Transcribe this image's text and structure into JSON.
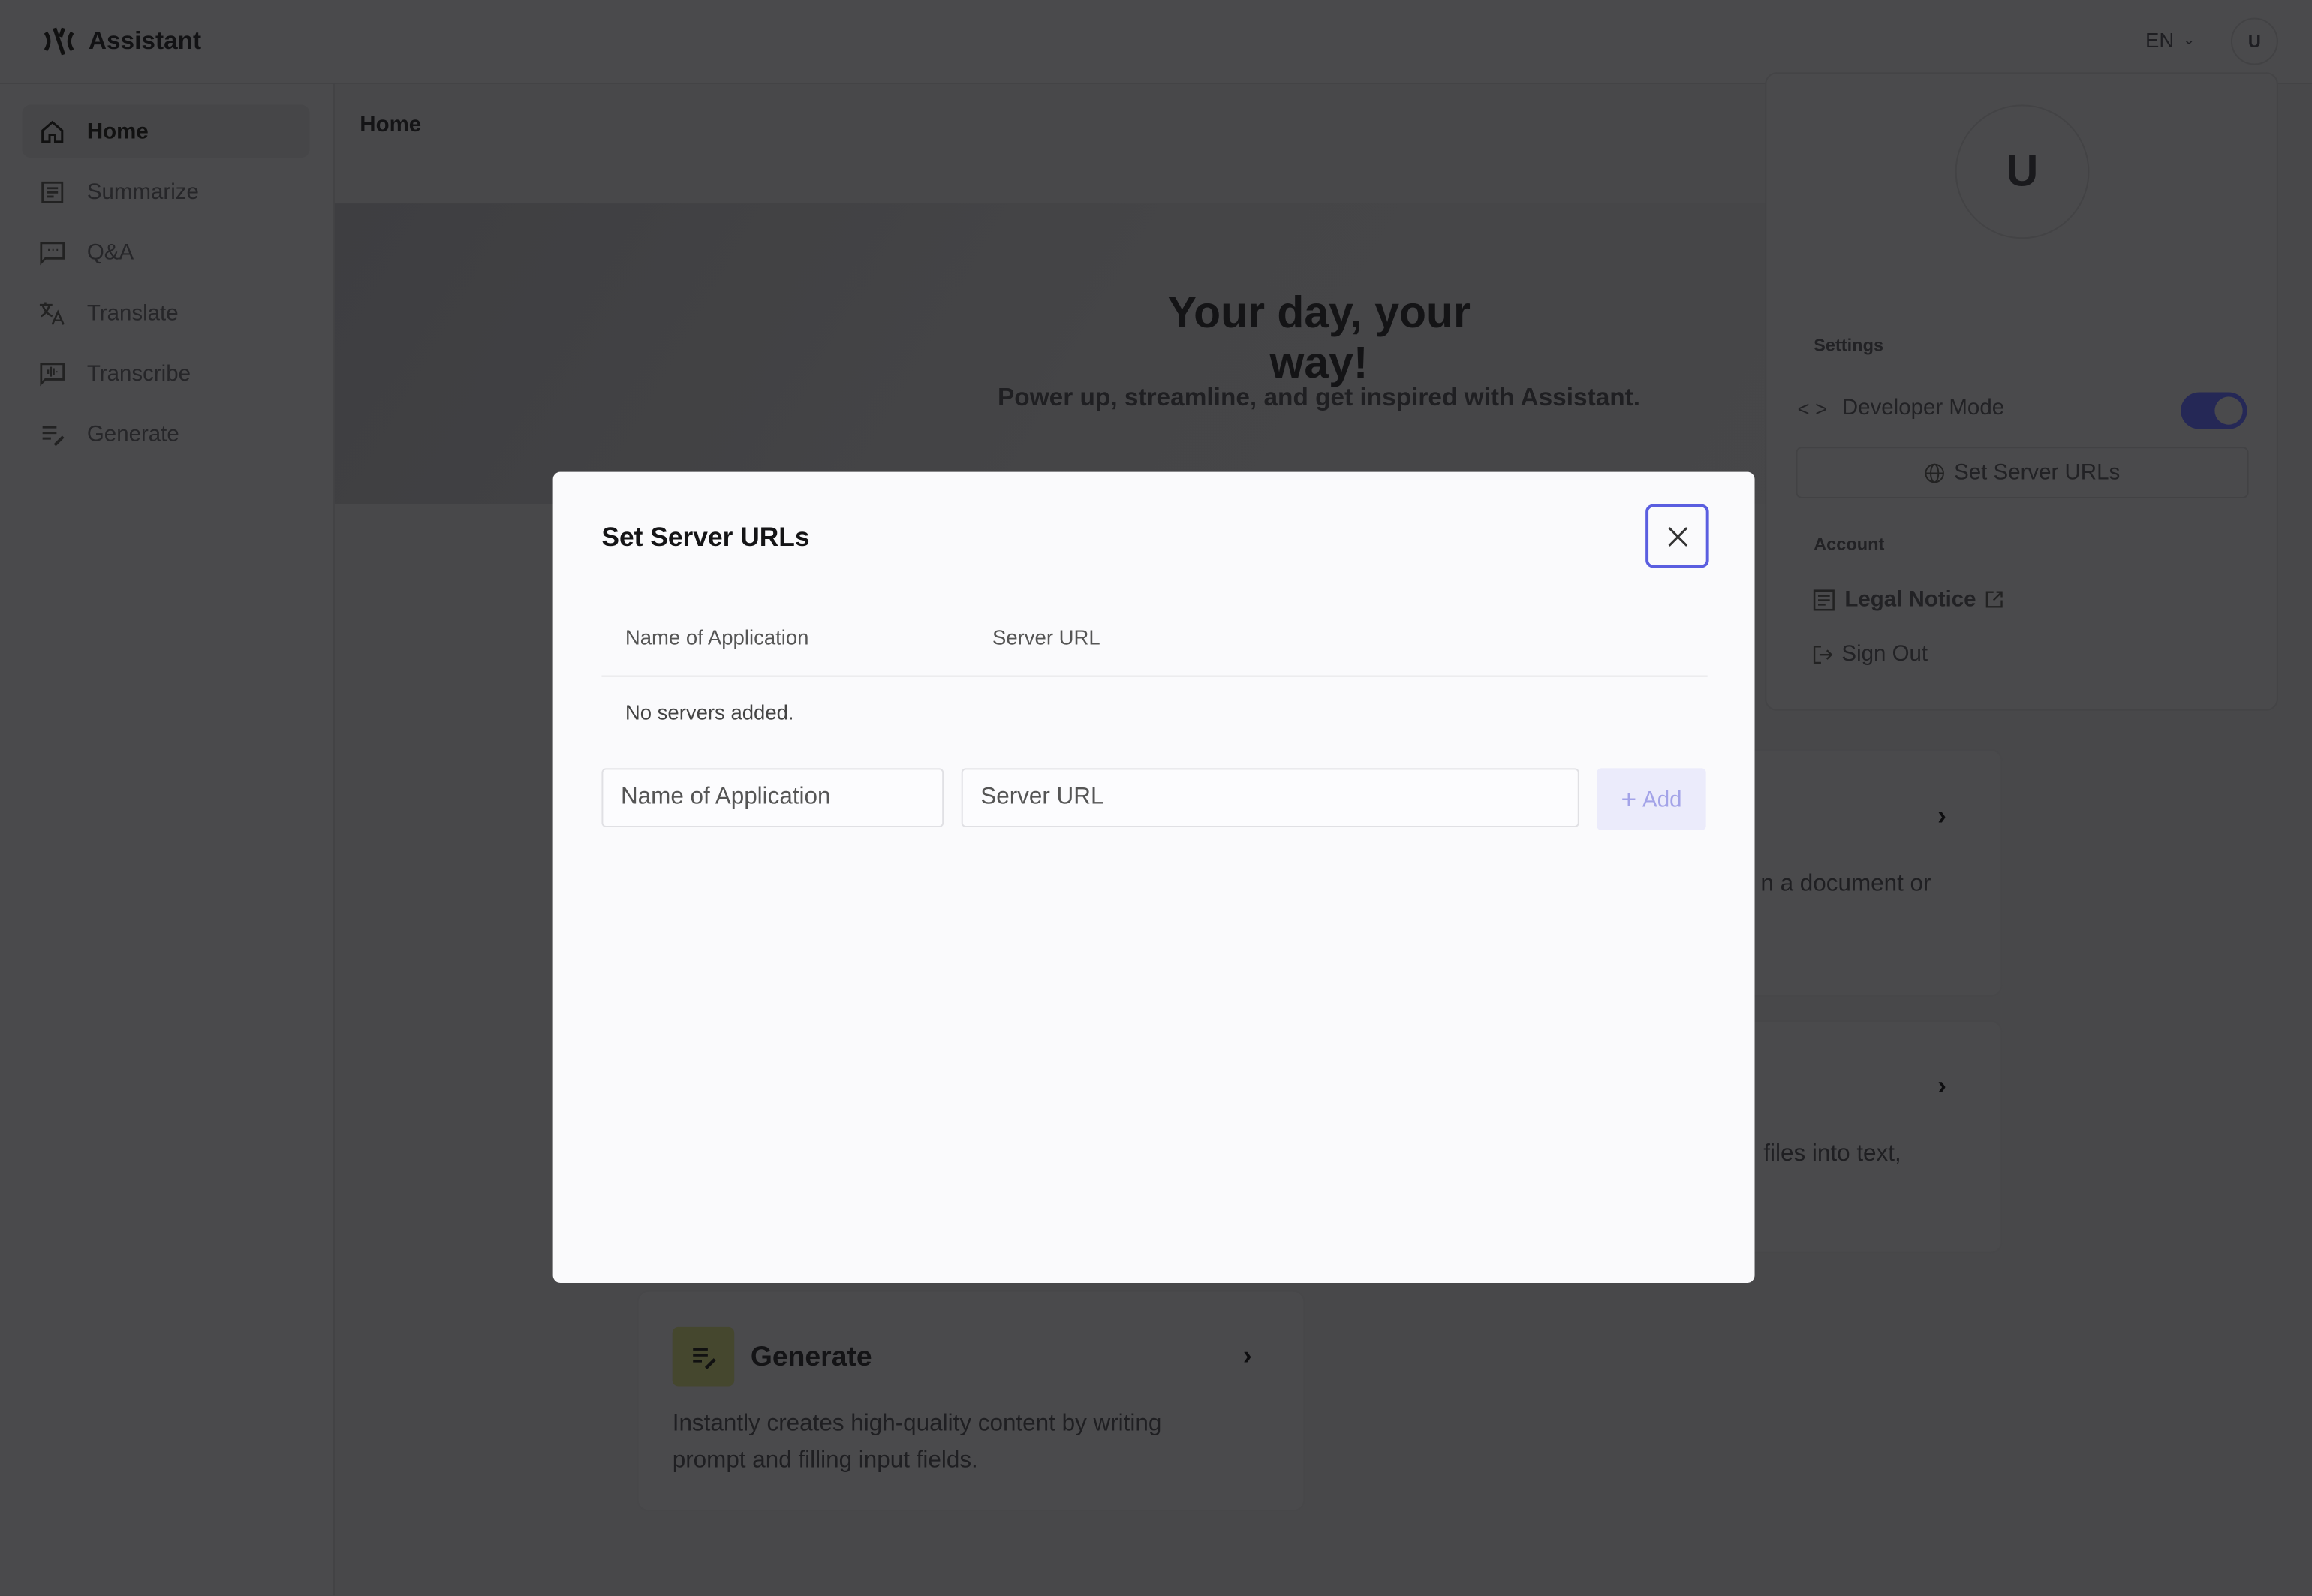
{
  "app": {
    "title": "Assistant",
    "language": "EN",
    "user_initial": "U"
  },
  "sidebar": {
    "items": [
      {
        "label": "Home",
        "icon": "home-icon",
        "active": true
      },
      {
        "label": "Summarize",
        "icon": "document-icon"
      },
      {
        "label": "Q&A",
        "icon": "chat-icon"
      },
      {
        "label": "Translate",
        "icon": "translate-icon"
      },
      {
        "label": "Transcribe",
        "icon": "transcribe-icon"
      },
      {
        "label": "Generate",
        "icon": "generate-icon"
      }
    ]
  },
  "breadcrumb": "Home",
  "hero": {
    "title": "Your day, your way!",
    "subtitle": "Power up, streamline, and get inspired with Assistant."
  },
  "cards": {
    "partial_1": "n a document or",
    "partial_2": "files into text,",
    "generate": {
      "title": "Generate",
      "description": "Instantly creates high-quality content by writing prompt and filling input fields.",
      "icon_bg": "#eef1c4"
    }
  },
  "user_menu": {
    "initial": "U",
    "settings_label": "Settings",
    "developer_mode": {
      "label": "Developer Mode",
      "enabled": true
    },
    "set_server_urls": "Set Server URLs",
    "account_label": "Account",
    "legal_notice": "Legal Notice",
    "sign_out": "Sign Out"
  },
  "modal": {
    "title": "Set Server URLs",
    "columns": [
      "Name of Application",
      "Server URL"
    ],
    "empty_text": "No servers added.",
    "name_placeholder": "Name of Application",
    "url_placeholder": "Server URL",
    "add_label": "Add"
  },
  "colors": {
    "accent": "#3b3fbd",
    "focus_ring": "#5a5ee0",
    "add_button_bg": "#ebebfb"
  }
}
